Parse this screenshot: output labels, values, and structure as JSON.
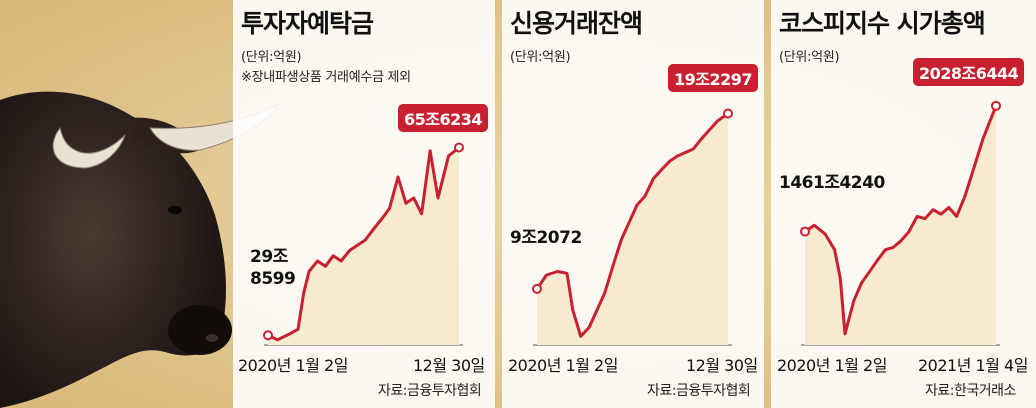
{
  "colors": {
    "line": "#c8202f",
    "area": "#f6ead1",
    "bg": "#e6cf9e"
  },
  "charts": [
    {
      "title": "투자자예탁금",
      "unit": "(단위:억원)",
      "note": "※장내파생상품 거래예수금 제외",
      "start_label_1": "29조",
      "start_label_2": "8599",
      "end_label": "65조6234",
      "x_start": "2020년 1월 2일",
      "x_end": "12월 30일",
      "source": "자료:금융투자협회"
    },
    {
      "title": "신용거래잔액",
      "unit": "(단위:억원)",
      "start_label": "9조2072",
      "end_label": "19조2297",
      "x_start": "2020년 1월 2일",
      "x_end": "12월 30일",
      "source": "자료:금융투자협회"
    },
    {
      "title": "코스피지수 시가총액",
      "unit": "(단위:억원)",
      "start_label": "1461조4240",
      "end_label": "2028조6444",
      "x_start": "2020년 1월 2일",
      "x_end": "2021년 1월 4일",
      "source": "자료:한국거래소"
    }
  ],
  "chart_data": [
    {
      "type": "line",
      "title": "투자자예탁금",
      "ylabel": "(단위:억원)",
      "x": [
        "2020-01-02",
        "2020-01-20",
        "2020-02-10",
        "2020-02-28",
        "2020-03-10",
        "2020-03-20",
        "2020-04-05",
        "2020-04-20",
        "2020-05-05",
        "2020-05-20",
        "2020-06-05",
        "2020-06-20",
        "2020-07-05",
        "2020-07-20",
        "2020-08-05",
        "2020-08-20",
        "2020-09-05",
        "2020-09-20",
        "2020-10-05",
        "2020-10-20",
        "2020-11-05",
        "2020-11-20",
        "2020-12-10",
        "2020-12-30"
      ],
      "values": [
        298599,
        290000,
        300000,
        310000,
        380000,
        420000,
        440000,
        430000,
        450000,
        440000,
        460000,
        470000,
        480000,
        500000,
        520000,
        540000,
        600000,
        550000,
        560000,
        530000,
        650000,
        560000,
        640000,
        656234
      ],
      "ylim": [
        280000,
        680000
      ]
    },
    {
      "type": "line",
      "title": "신용거래잔액",
      "ylabel": "(단위:억원)",
      "x": [
        "2020-01-02",
        "2020-01-20",
        "2020-02-10",
        "2020-02-28",
        "2020-03-10",
        "2020-03-25",
        "2020-04-10",
        "2020-04-25",
        "2020-05-10",
        "2020-05-25",
        "2020-06-10",
        "2020-06-25",
        "2020-07-10",
        "2020-07-25",
        "2020-08-10",
        "2020-08-25",
        "2020-09-10",
        "2020-09-25",
        "2020-10-10",
        "2020-10-25",
        "2020-11-10",
        "2020-11-25",
        "2020-12-10",
        "2020-12-30"
      ],
      "values": [
        92072,
        100000,
        102000,
        101000,
        80000,
        65000,
        70000,
        80000,
        90000,
        105000,
        120000,
        130000,
        140000,
        145000,
        155000,
        160000,
        165000,
        168000,
        170000,
        172000,
        178000,
        183000,
        188000,
        192297
      ],
      "ylim": [
        60000,
        200000
      ]
    },
    {
      "type": "line",
      "title": "코스피지수 시가총액",
      "ylabel": "(단위:억원)",
      "x": [
        "2020-01-02",
        "2020-01-20",
        "2020-02-10",
        "2020-02-28",
        "2020-03-10",
        "2020-03-19",
        "2020-04-05",
        "2020-04-20",
        "2020-05-05",
        "2020-05-20",
        "2020-06-05",
        "2020-06-20",
        "2020-07-05",
        "2020-07-20",
        "2020-08-05",
        "2020-08-20",
        "2020-09-05",
        "2020-09-20",
        "2020-10-05",
        "2020-10-20",
        "2020-11-05",
        "2020-11-20",
        "2020-12-10",
        "2021-01-04"
      ],
      "values": [
        14614240,
        14900000,
        14500000,
        13800000,
        12500000,
        10000000,
        11500000,
        12300000,
        12800000,
        13300000,
        13800000,
        13900000,
        14200000,
        14600000,
        15300000,
        15200000,
        15600000,
        15400000,
        15700000,
        15300000,
        16200000,
        17300000,
        18800000,
        20286444
      ],
      "ylim": [
        9500000,
        21000000
      ]
    }
  ]
}
